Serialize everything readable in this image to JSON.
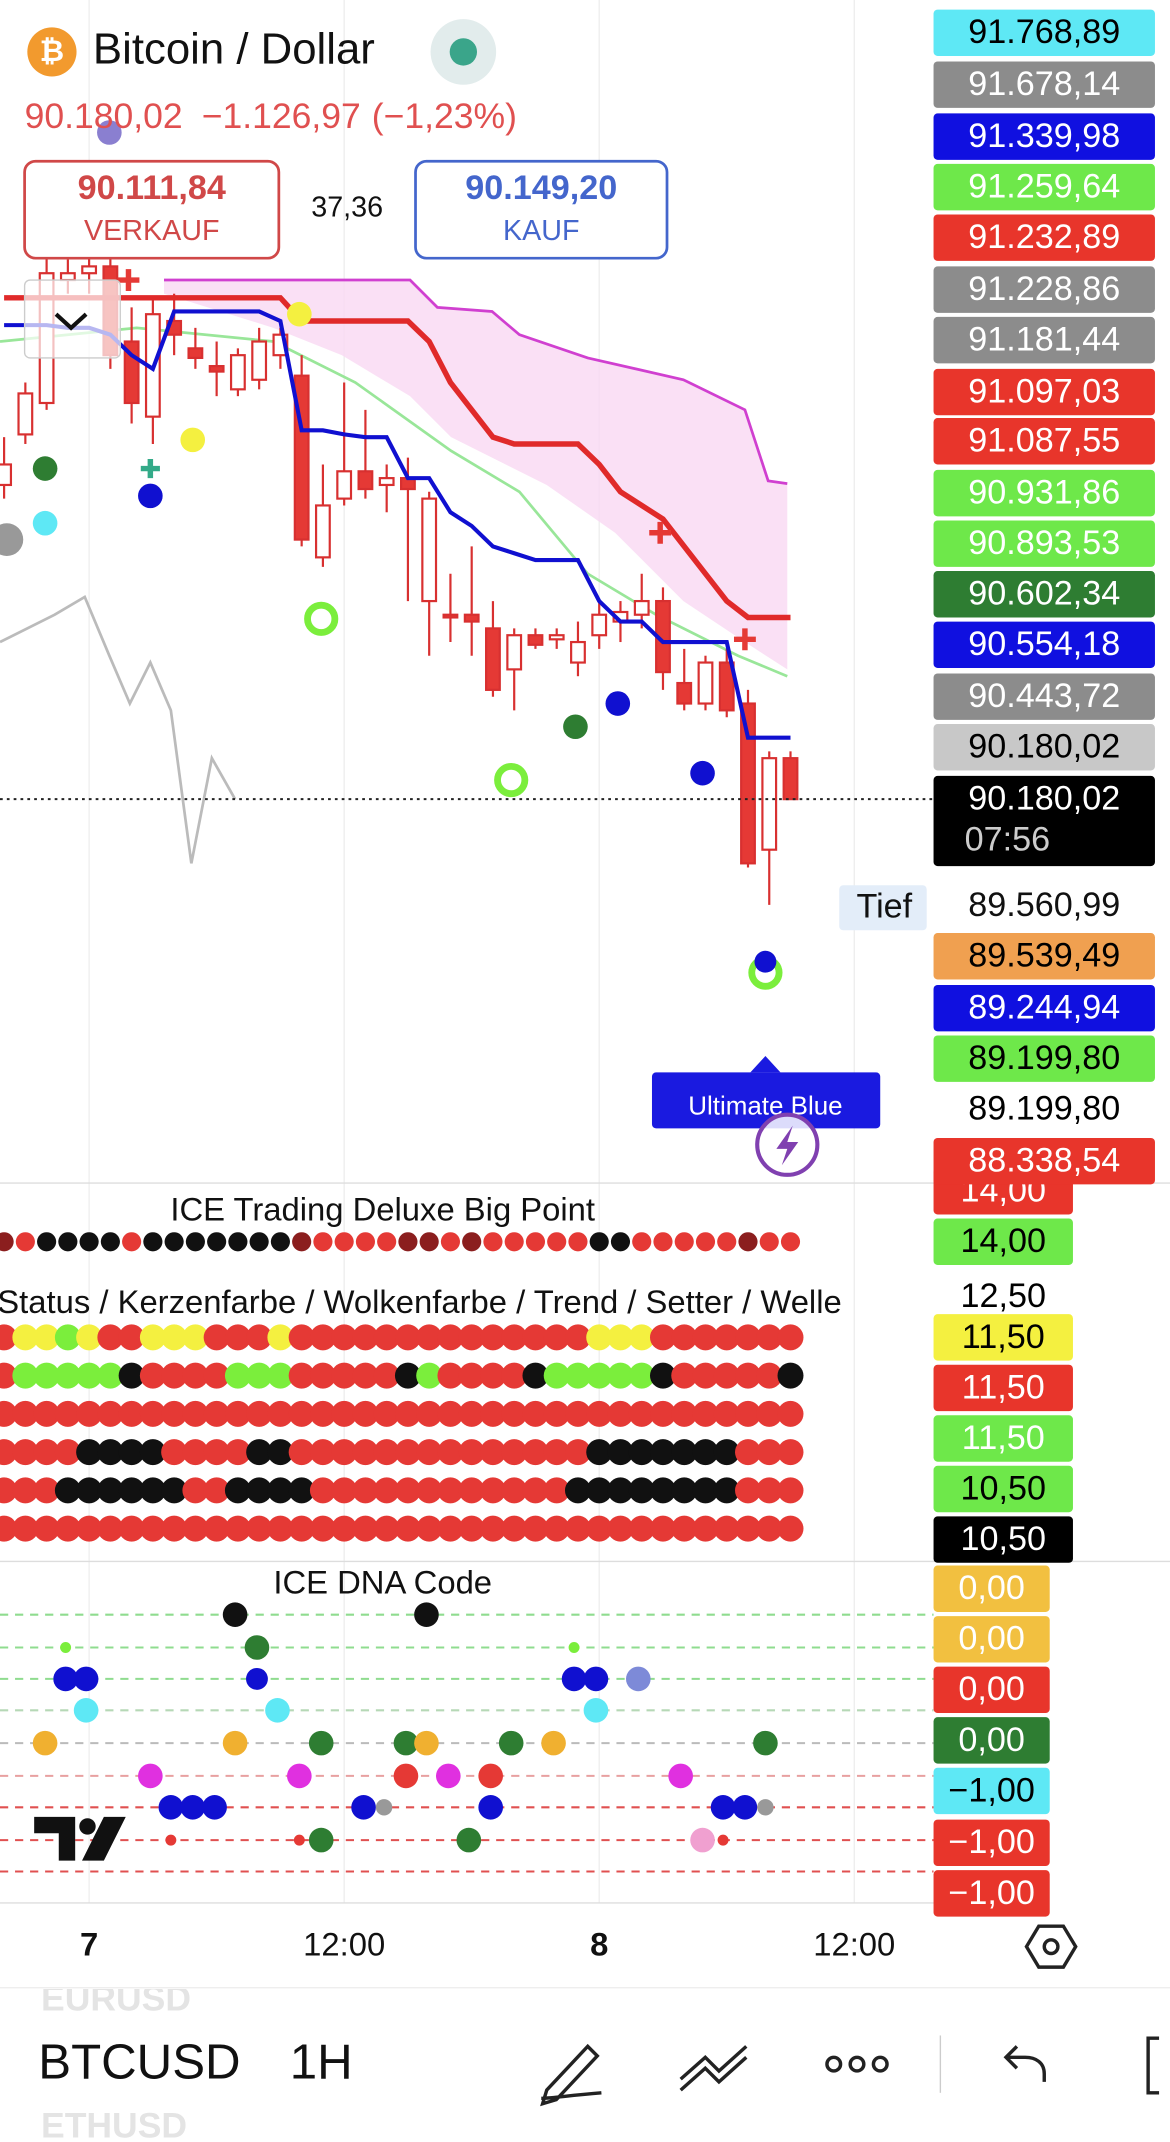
{
  "header": {
    "symbol_name": "Bitcoin / Dollar",
    "last": "90.180,02",
    "change": "−1.126,97",
    "change_pct": "(−1,23%)"
  },
  "trade": {
    "sell_price": "90.111,84",
    "sell_label": "VERKAUF",
    "spread": "37,36",
    "buy_price": "90.149,20",
    "buy_label": "KAUF"
  },
  "chart_data": {
    "type": "candlestick",
    "ylim": [
      87940,
      94860
    ],
    "categories": [
      null,
      null,
      null,
      null,
      "7",
      null,
      null,
      null,
      null,
      null,
      null,
      null,
      null,
      null,
      null,
      null,
      "12:00",
      null,
      null,
      null,
      null,
      null,
      null,
      null,
      null,
      null,
      null,
      null,
      "8",
      null,
      null,
      null,
      null,
      null,
      null,
      null,
      null,
      null,
      null,
      null,
      "12:00"
    ],
    "open": [
      92020,
      92316,
      92500,
      93220,
      93260,
      93300,
      92860,
      92420,
      92980,
      92820,
      92716,
      92580,
      92636,
      92780,
      92660,
      91596,
      91940,
      92100,
      92020,
      92060,
      91340,
      91260,
      91260,
      91180,
      90940,
      91140,
      91116,
      90980,
      91140,
      91220,
      91260,
      91340,
      90860,
      90740,
      90980,
      90740,
      89884,
      90420,
      null,
      null,
      null
    ],
    "high": [
      92300,
      92620,
      93340,
      93340,
      93380,
      93380,
      93060,
      93100,
      93140,
      92940,
      92860,
      92820,
      92940,
      92940,
      92780,
      92140,
      92620,
      92460,
      92140,
      92180,
      91980,
      91500,
      91660,
      91340,
      91180,
      91180,
      91180,
      91220,
      91340,
      91340,
      91500,
      91420,
      91060,
      91020,
      91060,
      90820,
      90460,
      90460,
      null,
      null,
      null
    ],
    "low": [
      91940,
      92260,
      92460,
      93140,
      93140,
      92700,
      92380,
      92260,
      92780,
      92700,
      92540,
      92540,
      92580,
      92700,
      91660,
      91540,
      91900,
      91940,
      91860,
      91340,
      91020,
      91100,
      91020,
      90780,
      90700,
      91060,
      91060,
      90900,
      91060,
      91100,
      91180,
      90820,
      90700,
      90700,
      90660,
      89780,
      89560.99,
      90180.02,
      null,
      null,
      null
    ],
    "close": [
      92140,
      92556,
      93260,
      93260,
      93300,
      92780,
      92500,
      93020,
      92900,
      92764,
      92684,
      92780,
      92860,
      92900,
      91700,
      91900,
      92100,
      91996,
      92060,
      91996,
      91940,
      91244,
      91220,
      90820,
      91140,
      91084,
      91140,
      91100,
      91260,
      91276,
      91340,
      90924,
      90740,
      90980,
      90700,
      89804,
      90420,
      90180.02,
      null,
      null,
      null
    ],
    "up_color": "#ffffff",
    "down_color": "#e53935",
    "wick_color": "#d83030",
    "series": [
      {
        "color": "#1010d0",
        "values": [
          92956,
          92956,
          92956,
          92940,
          92940,
          92900,
          92780,
          92700,
          93036,
          93036,
          93036,
          93036,
          93036,
          92980,
          92340,
          92340,
          92316,
          92300,
          92300,
          92060,
          92060,
          91860,
          91780,
          91660,
          91620,
          91580,
          91580,
          91580,
          91340,
          91220,
          91220,
          91100,
          91100,
          91100,
          91100,
          90540,
          90540,
          90540,
          null,
          null,
          null
        ]
      },
      {
        "color": "#e02a2a",
        "values": [
          93116,
          93116,
          93116,
          93116,
          93116,
          93116,
          93116,
          93116,
          93116,
          93116,
          93116,
          93116,
          93116,
          93116,
          92980,
          92980,
          92980,
          92980,
          92980,
          92980,
          92860,
          92620,
          92460,
          92300,
          92260,
          92260,
          92260,
          92260,
          92140,
          91980,
          91900,
          91820,
          91660,
          91500,
          91340,
          91244,
          91244,
          91244,
          null,
          null,
          null
        ]
      }
    ]
  },
  "price_labels": [
    {
      "label": "91.768,89",
      "color": "#5ee8f5",
      "fg": "#000000"
    },
    {
      "label": "91.678,14",
      "color": "#8c8c8c",
      "fg": "#ffffff"
    },
    {
      "label": "91.339,98",
      "color": "#1010e0",
      "fg": "#ffffff"
    },
    {
      "label": "91.259,64",
      "color": "#6ee84a",
      "fg": "#ffffff"
    },
    {
      "label": "91.232,89",
      "color": "#e8352b",
      "fg": "#ffffff"
    },
    {
      "label": "91.228,86",
      "color": "#8c8c8c",
      "fg": "#ffffff"
    },
    {
      "label": "91.181,44",
      "color": "#8c8c8c",
      "fg": "#ffffff"
    },
    {
      "label": "91.097,03",
      "color": "#e8352b",
      "fg": "#ffffff"
    },
    {
      "label": "91.087,55",
      "color": "#e8352b",
      "fg": "#ffffff"
    },
    {
      "label": "90.931,86",
      "color": "#6ee84a",
      "fg": "#ffffff"
    },
    {
      "label": "90.893,53",
      "color": "#6ee84a",
      "fg": "#ffffff"
    },
    {
      "label": "90.602,34",
      "color": "#2e7d32",
      "fg": "#ffffff"
    },
    {
      "label": "90.554,18",
      "color": "#1010e0",
      "fg": "#ffffff"
    },
    {
      "label": "90.443,72",
      "color": "#8c8c8c",
      "fg": "#ffffff"
    },
    {
      "label": "90.180,02",
      "color": "#c8c8c8",
      "fg": "#000000"
    },
    {
      "label": "89.539,49",
      "color": "#f0a050",
      "fg": "#000000"
    },
    {
      "label": "89.244,94",
      "color": "#1010e0",
      "fg": "#ffffff"
    },
    {
      "label": "89.199,80",
      "color": "#6ee84a",
      "fg": "#000000"
    },
    {
      "label": "89.199,80",
      "color": "#ffffff",
      "fg": "#000000"
    },
    {
      "label": "88.338,54",
      "color": "#e8352b",
      "fg": "#ffffff"
    }
  ],
  "last_price": {
    "label": "90.180,02",
    "countdown": "07:56"
  },
  "low_marker": {
    "label": "Tief",
    "value": "89.560,99"
  },
  "tooltip": "Ultimate Blue",
  "indicator_panel": {
    "title": "ICE Trading Deluxe Big Point",
    "status_title": "Status / Kerzenfarbe / Wolkenfarbe / Trend / Setter / Welle",
    "big_point": [
      "#8b1e1e",
      "#e53935",
      "#111111",
      "#111111",
      "#111111",
      "#111111",
      "#e53935",
      "#111111",
      "#111111",
      "#111111",
      "#111111",
      "#111111",
      "#111111",
      "#111111",
      "#8b1e1e",
      "#e53935",
      "#e53935",
      "#e53935",
      "#e53935",
      "#8b1e1e",
      "#8b1e1e",
      "#e53935",
      "#8b1e1e",
      "#e53935",
      "#e53935",
      "#e53935",
      "#e53935",
      "#e53935",
      "#111111",
      "#111111",
      "#e53935",
      "#e53935",
      "#e53935",
      "#e53935",
      "#e53935",
      "#8b1e1e",
      "#e53935",
      "#e53935"
    ],
    "status_rows": [
      [
        "#e53935",
        "#f4f040",
        "#f4f040",
        "#7bee3c",
        "#f4f040",
        "#e53935",
        "#e53935",
        "#f4f040",
        "#f4f040",
        "#f4f040",
        "#e53935",
        "#e53935",
        "#e53935",
        "#f4f040",
        "#e53935",
        "#e53935",
        "#e53935",
        "#e53935",
        "#e53935",
        "#e53935",
        "#e53935",
        "#e53935",
        "#e53935",
        "#e53935",
        "#e53935",
        "#e53935",
        "#e53935",
        "#e53935",
        "#f4f040",
        "#f4f040",
        "#f4f040",
        "#e53935",
        "#e53935",
        "#e53935",
        "#e53935",
        "#e53935",
        "#e53935",
        "#e53935"
      ],
      [
        "#e53935",
        "#7bee3c",
        "#7bee3c",
        "#7bee3c",
        "#7bee3c",
        "#7bee3c",
        "#111111",
        "#e53935",
        "#e53935",
        "#e53935",
        "#e53935",
        "#7bee3c",
        "#7bee3c",
        "#7bee3c",
        "#e53935",
        "#e53935",
        "#e53935",
        "#e53935",
        "#e53935",
        "#111111",
        "#7bee3c",
        "#e53935",
        "#e53935",
        "#e53935",
        "#e53935",
        "#111111",
        "#7bee3c",
        "#7bee3c",
        "#7bee3c",
        "#7bee3c",
        "#7bee3c",
        "#111111",
        "#e53935",
        "#e53935",
        "#e53935",
        "#e53935",
        "#e53935",
        "#111111"
      ],
      [
        "#e53935",
        "#e53935",
        "#e53935",
        "#e53935",
        "#e53935",
        "#e53935",
        "#e53935",
        "#e53935",
        "#e53935",
        "#e53935",
        "#e53935",
        "#e53935",
        "#e53935",
        "#e53935",
        "#e53935",
        "#e53935",
        "#e53935",
        "#e53935",
        "#e53935",
        "#e53935",
        "#e53935",
        "#e53935",
        "#e53935",
        "#e53935",
        "#e53935",
        "#e53935",
        "#e53935",
        "#e53935",
        "#e53935",
        "#e53935",
        "#e53935",
        "#e53935",
        "#e53935",
        "#e53935",
        "#e53935",
        "#e53935",
        "#e53935",
        "#e53935"
      ],
      [
        "#e53935",
        "#e53935",
        "#e53935",
        "#e53935",
        "#111111",
        "#111111",
        "#111111",
        "#111111",
        "#e53935",
        "#e53935",
        "#e53935",
        "#e53935",
        "#111111",
        "#111111",
        "#e53935",
        "#e53935",
        "#e53935",
        "#e53935",
        "#e53935",
        "#e53935",
        "#e53935",
        "#e53935",
        "#e53935",
        "#e53935",
        "#e53935",
        "#e53935",
        "#e53935",
        "#e53935",
        "#111111",
        "#111111",
        "#111111",
        "#111111",
        "#111111",
        "#111111",
        "#111111",
        "#e53935",
        "#e53935",
        "#e53935"
      ],
      [
        "#e53935",
        "#e53935",
        "#e53935",
        "#111111",
        "#111111",
        "#111111",
        "#111111",
        "#111111",
        "#111111",
        "#e53935",
        "#e53935",
        "#111111",
        "#111111",
        "#111111",
        "#111111",
        "#e53935",
        "#e53935",
        "#e53935",
        "#e53935",
        "#e53935",
        "#e53935",
        "#e53935",
        "#e53935",
        "#e53935",
        "#e53935",
        "#e53935",
        "#e53935",
        "#111111",
        "#111111",
        "#111111",
        "#111111",
        "#111111",
        "#111111",
        "#111111",
        "#111111",
        "#e53935",
        "#e53935",
        "#e53935"
      ],
      [
        "#e53935",
        "#e53935",
        "#e53935",
        "#e53935",
        "#e53935",
        "#e53935",
        "#e53935",
        "#e53935",
        "#e53935",
        "#e53935",
        "#e53935",
        "#e53935",
        "#e53935",
        "#e53935",
        "#e53935",
        "#e53935",
        "#e53935",
        "#e53935",
        "#e53935",
        "#e53935",
        "#e53935",
        "#e53935",
        "#e53935",
        "#e53935",
        "#e53935",
        "#e53935",
        "#e53935",
        "#e53935",
        "#e53935",
        "#e53935",
        "#e53935",
        "#e53935",
        "#e53935",
        "#e53935",
        "#e53935",
        "#e53935",
        "#e53935",
        "#e53935"
      ]
    ],
    "labels": [
      {
        "label": "14,00",
        "color": "#e8352b",
        "fg": "#ffffff"
      },
      {
        "label": "14,00",
        "color": "#6ee84a",
        "fg": "#000000"
      },
      {
        "label": "12,50",
        "color": "#ffffff",
        "fg": "#000000"
      },
      {
        "label": "11,50",
        "color": "#f4f040",
        "fg": "#000000"
      },
      {
        "label": "11,50",
        "color": "#e8352b",
        "fg": "#ffffff"
      },
      {
        "label": "11,50",
        "color": "#6ee84a",
        "fg": "#ffffff"
      },
      {
        "label": "10,50",
        "color": "#6ee84a",
        "fg": "#000000"
      },
      {
        "label": "10,50",
        "color": "#000000",
        "fg": "#ffffff"
      }
    ]
  },
  "dna_panel": {
    "title": "ICE DNA Code",
    "labels": [
      {
        "label": "0,00",
        "color": "#f2c040",
        "fg": "#ffffff"
      },
      {
        "label": "0,00",
        "color": "#f2c040",
        "fg": "#ffffff"
      },
      {
        "label": "0,00",
        "color": "#e8352b",
        "fg": "#ffffff"
      },
      {
        "label": "0,00",
        "color": "#2e7d32",
        "fg": "#ffffff"
      },
      {
        "label": "−1,00",
        "color": "#5ee8f5",
        "fg": "#000000"
      },
      {
        "label": "−1,00",
        "color": "#e8352b",
        "fg": "#ffffff"
      },
      {
        "label": "−1,00",
        "color": "#e8352b",
        "fg": "#ffffff"
      }
    ]
  },
  "toolbar": {
    "prev_symbol": "EURUSD",
    "symbol": "BTCUSD",
    "interval": "1H",
    "next_symbol": "ETHUSD"
  }
}
